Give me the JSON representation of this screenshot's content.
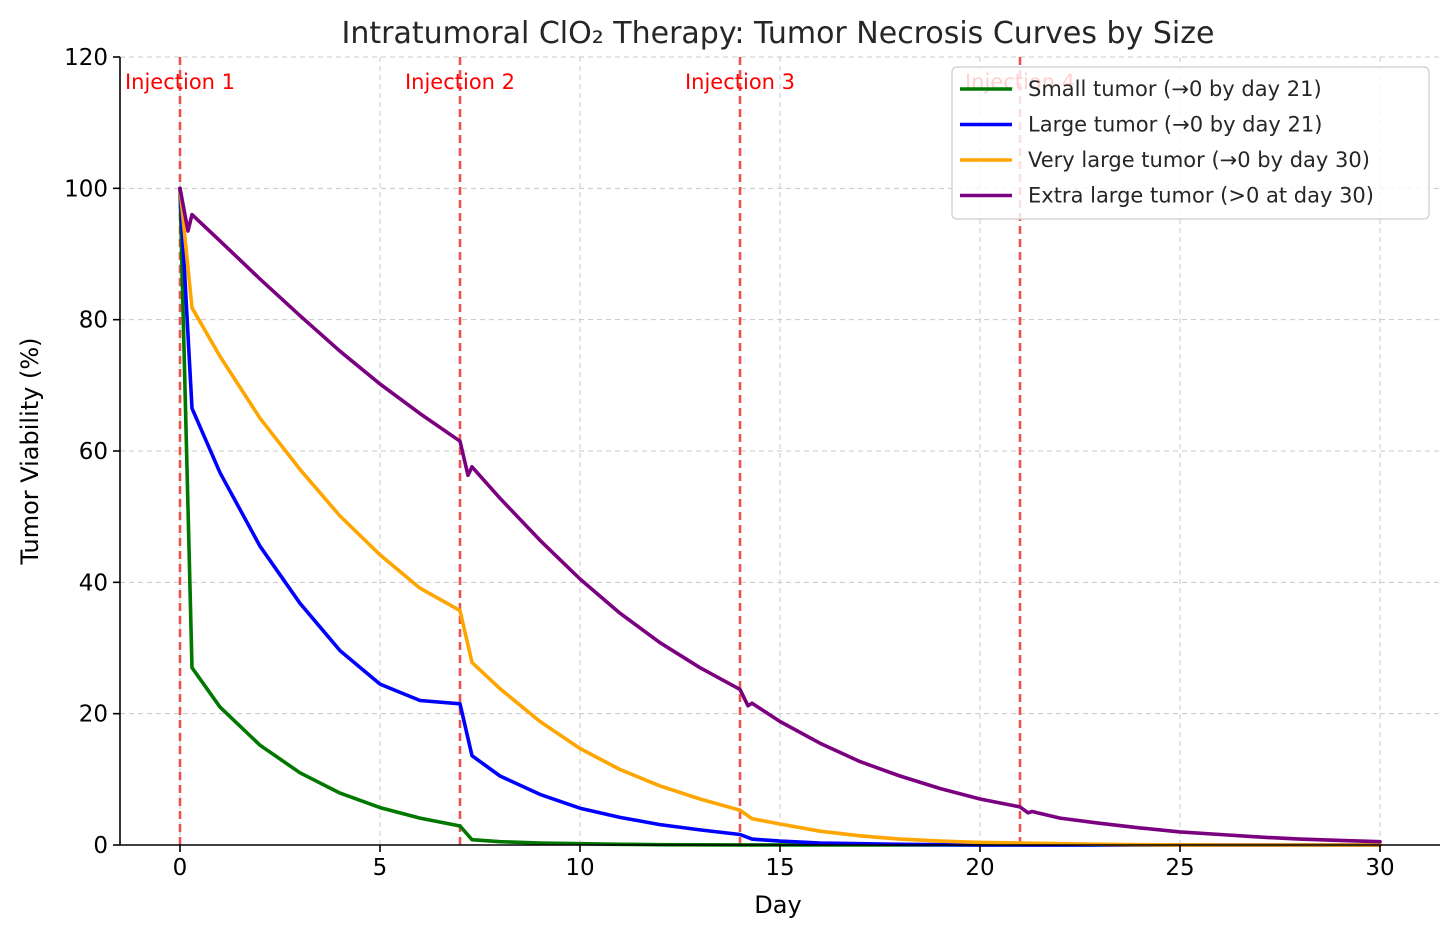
{
  "chart_data": {
    "type": "line",
    "title": "Intratumoral ClO₂ Therapy: Tumor Necrosis Curves by Size",
    "xlabel": "Day",
    "ylabel": "Tumor Viability (%)",
    "xlim": [
      -1.5,
      31.5
    ],
    "ylim": [
      0,
      120
    ],
    "xticks": [
      0,
      5,
      10,
      15,
      20,
      25,
      30
    ],
    "yticks": [
      0,
      20,
      40,
      60,
      80,
      100,
      120
    ],
    "grid": true,
    "legend_position": "top-right",
    "injection_color": "#e8443a",
    "injections": [
      {
        "day": 0,
        "label": "Injection 1"
      },
      {
        "day": 7,
        "label": "Injection 2"
      },
      {
        "day": 14,
        "label": "Injection 3"
      },
      {
        "day": 21,
        "label": "Injection 4"
      }
    ],
    "series": [
      {
        "name": "Small tumor (→0 by day 21)",
        "color": "#007800",
        "x": [
          0,
          0.3,
          1,
          2,
          3,
          4,
          5,
          6,
          7,
          7.3,
          8,
          9,
          10,
          11,
          12,
          13,
          14,
          15,
          16,
          17,
          18,
          19,
          20,
          21,
          22,
          23,
          24,
          25,
          26,
          27,
          28,
          29,
          30
        ],
        "y": [
          100,
          27,
          21,
          15.2,
          11,
          7.9,
          5.7,
          4.1,
          2.9,
          0.8,
          0.5,
          0.3,
          0.2,
          0.1,
          0.05,
          0.03,
          0.02,
          0.01,
          0,
          0,
          0,
          0,
          0,
          0,
          0,
          0,
          0,
          0,
          0,
          0,
          0,
          0,
          0
        ]
      },
      {
        "name": "Large tumor (→0 by day 21)",
        "color": "#0000ff",
        "x": [
          0,
          0.3,
          1,
          2,
          3,
          4,
          5,
          6,
          7,
          7.3,
          8,
          9,
          10,
          11,
          12,
          13,
          14,
          14.3,
          15,
          16,
          17,
          18,
          19,
          20,
          21,
          22,
          23,
          24,
          25,
          26,
          27,
          28,
          29,
          30
        ],
        "y": [
          100,
          66.5,
          56.7,
          45.5,
          36.8,
          29.6,
          24.5,
          22.0,
          21.5,
          13.6,
          10.5,
          7.7,
          5.6,
          4.2,
          3.1,
          2.3,
          1.6,
          0.9,
          0.6,
          0.3,
          0.2,
          0.1,
          0.05,
          0.02,
          0,
          0,
          0,
          0,
          0,
          0,
          0,
          0,
          0,
          0
        ]
      },
      {
        "name": "Very large tumor (→0 by day 30)",
        "color": "#ffa500",
        "x": [
          0,
          0.3,
          1,
          2,
          3,
          4,
          5,
          6,
          7,
          7.3,
          8,
          9,
          10,
          11,
          12,
          13,
          14,
          14.3,
          15,
          16,
          17,
          18,
          19,
          20,
          21,
          22,
          23,
          24,
          25,
          26,
          27,
          28,
          29,
          30
        ],
        "y": [
          100,
          81.8,
          74.4,
          65.0,
          57.2,
          50.1,
          44.2,
          39.1,
          35.7,
          27.8,
          23.8,
          18.8,
          14.7,
          11.5,
          9.0,
          7.0,
          5.3,
          4.0,
          3.2,
          2.1,
          1.4,
          0.9,
          0.6,
          0.4,
          0.3,
          0.2,
          0.1,
          0.05,
          0.02,
          0,
          0,
          0,
          0,
          0
        ]
      },
      {
        "name": "Extra large tumor (>0 at day 30)",
        "color": "#7b0080",
        "x": [
          0,
          0.2,
          0.3,
          1,
          2,
          3,
          4,
          5,
          6,
          7,
          7.2,
          7.3,
          8,
          9,
          10,
          11,
          12,
          13,
          14,
          14.2,
          14.3,
          15,
          16,
          17,
          18,
          19,
          20,
          21,
          21.2,
          21.3,
          22,
          23,
          24,
          25,
          26,
          27,
          28,
          29,
          30
        ],
        "y": [
          100,
          93.5,
          96.0,
          92.0,
          86.2,
          80.6,
          75.2,
          70.2,
          65.7,
          61.5,
          56.3,
          57.6,
          52.8,
          46.4,
          40.5,
          35.3,
          30.8,
          27.0,
          23.7,
          21.2,
          21.6,
          18.8,
          15.5,
          12.7,
          10.5,
          8.6,
          7.0,
          5.8,
          4.9,
          5.1,
          4.1,
          3.3,
          2.6,
          2.0,
          1.6,
          1.2,
          0.9,
          0.7,
          0.5
        ]
      }
    ]
  }
}
